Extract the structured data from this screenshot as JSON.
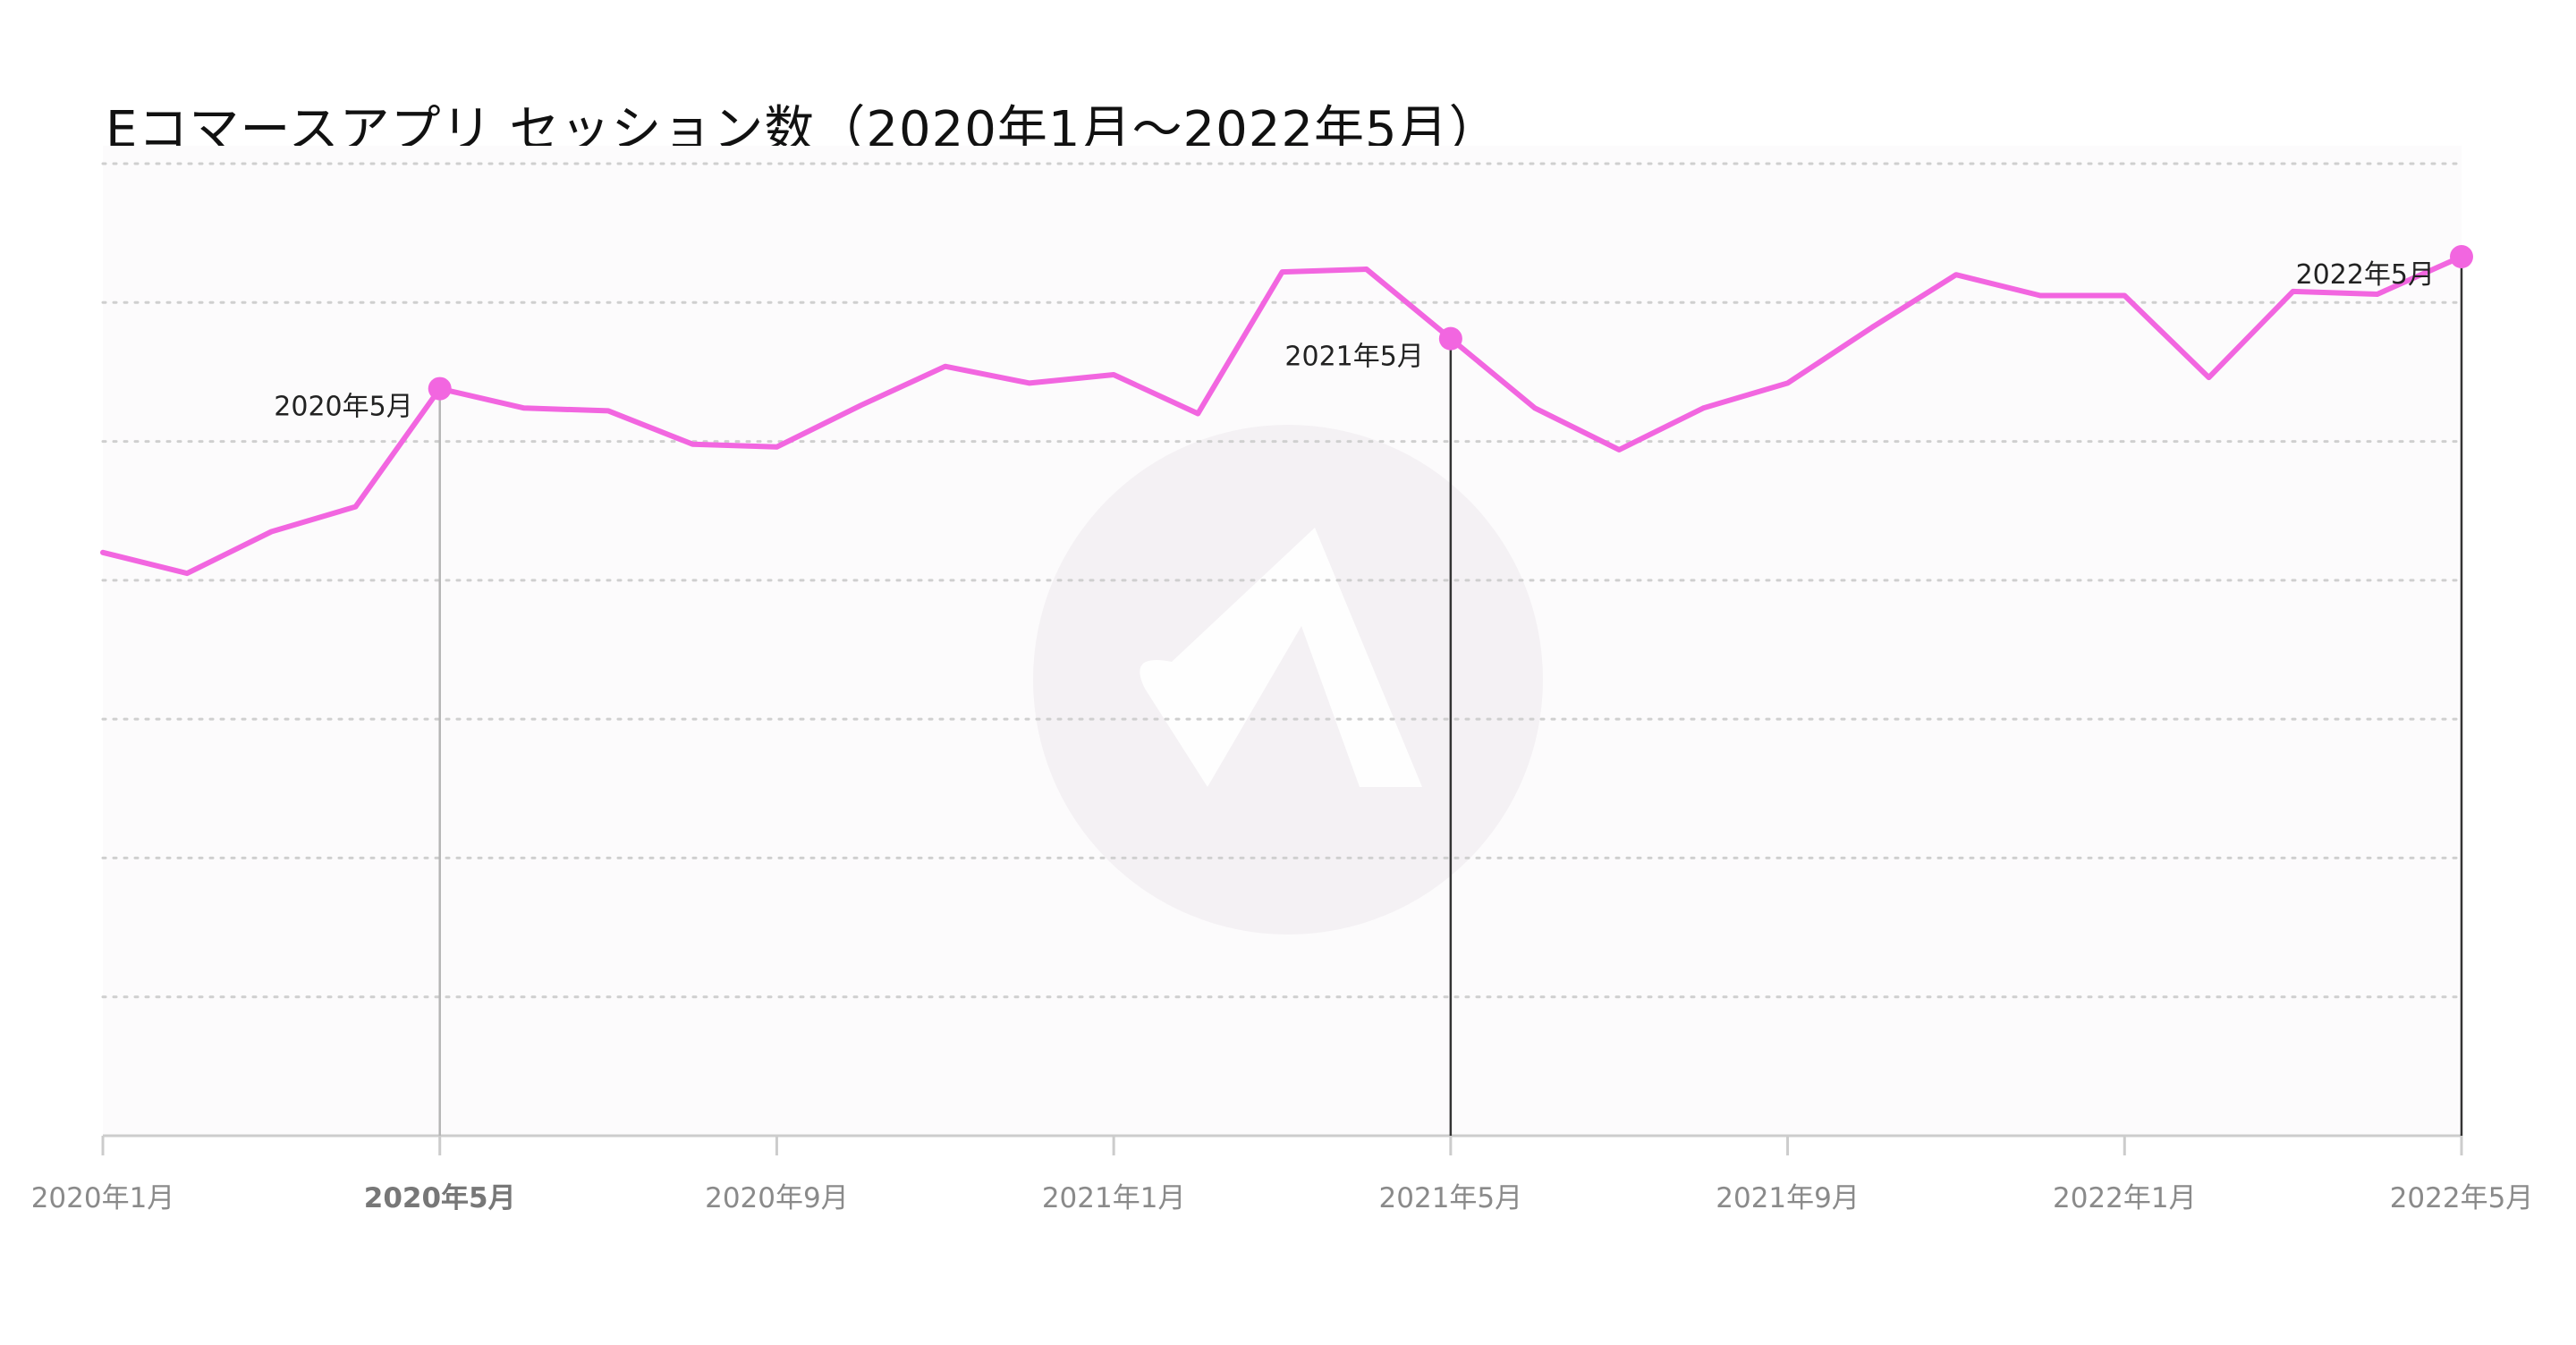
{
  "chart_data": {
    "type": "line",
    "title": "Eコマースアプリ セッション数（2020年1月〜2022年5月）",
    "xlabel": "",
    "ylabel": "",
    "grid": true,
    "legend": "none",
    "y_axis_labels_shown": false,
    "x": [
      "2020-01",
      "2020-02",
      "2020-03",
      "2020-04",
      "2020-05",
      "2020-06",
      "2020-07",
      "2020-08",
      "2020-09",
      "2020-10",
      "2020-11",
      "2020-12",
      "2021-01",
      "2021-02",
      "2021-03",
      "2021-04",
      "2021-05",
      "2021-06",
      "2021-07",
      "2021-08",
      "2021-09",
      "2021-10",
      "2021-11",
      "2021-12",
      "2022-01",
      "2022-02",
      "2022-03",
      "2022-04",
      "2022-05"
    ],
    "series": [
      {
        "name": "",
        "color": "#f266e0",
        "values": [
          4.2,
          4.05,
          4.35,
          4.53,
          5.38,
          5.24,
          5.22,
          4.98,
          4.96,
          5.26,
          5.54,
          5.42,
          5.48,
          5.2,
          6.22,
          6.24,
          5.74,
          5.24,
          4.94,
          5.24,
          5.42,
          5.82,
          6.2,
          6.05,
          6.05,
          5.46,
          6.08,
          6.06,
          6.33
        ]
      }
    ],
    "ylim": [
      0,
      7
    ],
    "yticks": [
      0,
      1,
      2,
      3,
      4,
      5,
      6,
      7
    ],
    "xticks": [
      {
        "index": 0,
        "label": "2020年1月",
        "bold": false
      },
      {
        "index": 4,
        "label": "2020年5月",
        "bold": true
      },
      {
        "index": 8,
        "label": "2020年9月",
        "bold": false
      },
      {
        "index": 12,
        "label": "2021年1月",
        "bold": false
      },
      {
        "index": 16,
        "label": "2021年5月",
        "bold": false
      },
      {
        "index": 20,
        "label": "2021年9月",
        "bold": false
      },
      {
        "index": 24,
        "label": "2022年1月",
        "bold": false
      },
      {
        "index": 28,
        "label": "2022年5月",
        "bold": false
      }
    ],
    "highlights": [
      {
        "index": 4,
        "label": "2020年5月",
        "line_color": "#b5b5b5",
        "label_side": "left"
      },
      {
        "index": 16,
        "label": "2021年5月",
        "line_color": "#333333",
        "label_side": "left"
      },
      {
        "index": 28,
        "label": "2022年5月",
        "line_color": "#333333",
        "label_side": "left"
      }
    ]
  }
}
